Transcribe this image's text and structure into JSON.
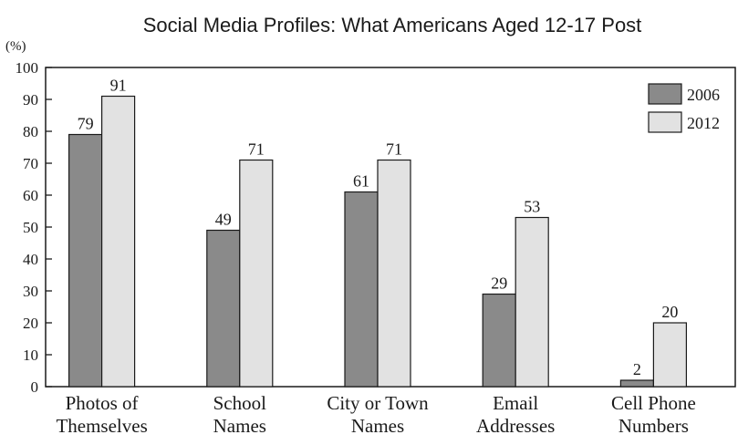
{
  "chart_data": {
    "type": "bar",
    "title": "Social Media Profiles: What Americans Aged 12-17 Post",
    "ylabel": "(%)",
    "xlabel": "",
    "ylim": [
      0,
      100
    ],
    "yticks": [
      0,
      10,
      20,
      30,
      40,
      50,
      60,
      70,
      80,
      90,
      100
    ],
    "categories": [
      [
        "Photos of",
        "Themselves"
      ],
      [
        "School",
        "Names"
      ],
      [
        "City or Town",
        "Names"
      ],
      [
        "Email",
        "Addresses"
      ],
      [
        "Cell Phone",
        "Numbers"
      ]
    ],
    "series": [
      {
        "name": "2006",
        "values": [
          79,
          49,
          61,
          29,
          2
        ],
        "color": "#8a8a8a"
      },
      {
        "name": "2012",
        "values": [
          91,
          71,
          71,
          53,
          20
        ],
        "color": "#e2e2e2"
      }
    ],
    "legend_position": "top-right",
    "grid": false
  }
}
